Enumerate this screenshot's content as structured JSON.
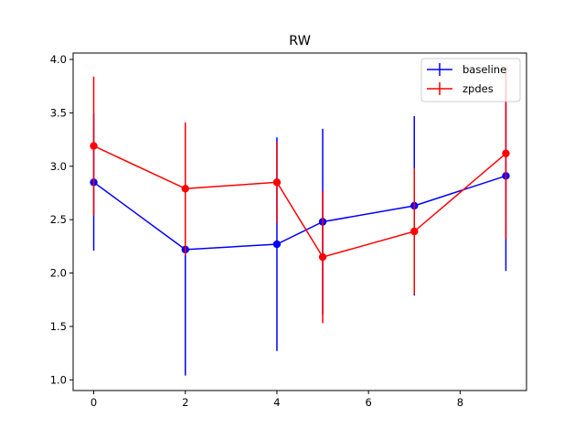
{
  "chart_data": {
    "type": "line",
    "title": "RW",
    "xlabel": "",
    "ylabel": "",
    "xlim": [
      -0.45,
      9.45
    ],
    "ylim": [
      0.9,
      4.06
    ],
    "xticks": [
      0,
      2,
      4,
      6,
      8
    ],
    "xtick_labels": [
      "0",
      "2",
      "4",
      "6",
      "8"
    ],
    "yticks": [
      1.0,
      1.5,
      2.0,
      2.5,
      3.0,
      3.5,
      4.0
    ],
    "ytick_labels": [
      "1.0",
      "1.5",
      "2.0",
      "2.5",
      "3.0",
      "3.5",
      "4.0"
    ],
    "grid": false,
    "legend_position": "top-right",
    "series": [
      {
        "name": "baseline",
        "color": "#0000ff",
        "x": [
          0,
          2,
          4,
          5,
          7,
          9
        ],
        "y": [
          2.85,
          2.22,
          2.27,
          2.48,
          2.63,
          2.91
        ],
        "err": [
          0.64,
          1.18,
          1.0,
          0.87,
          0.84,
          0.89
        ]
      },
      {
        "name": "zpdes",
        "color": "#ff0000",
        "x": [
          0,
          2,
          4,
          5,
          7,
          9
        ],
        "y": [
          3.19,
          2.79,
          2.85,
          2.15,
          2.39,
          3.12
        ],
        "err": [
          0.65,
          0.62,
          0.38,
          0.62,
          0.59,
          0.8
        ]
      }
    ]
  }
}
